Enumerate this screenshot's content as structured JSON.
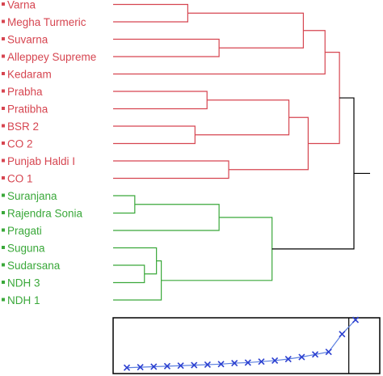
{
  "colors": {
    "cluster_a": "#d64550",
    "cluster_b": "#3aa83a",
    "root": "#000000",
    "plot_line": "#5b7fe0",
    "plot_marker": "#2b3fd0",
    "plot_frame": "#000000"
  },
  "dendrogram": {
    "leaves": [
      {
        "label": "Varna",
        "cluster": "a"
      },
      {
        "label": "Megha Turmeric",
        "cluster": "a"
      },
      {
        "label": "Suvarna",
        "cluster": "a"
      },
      {
        "label": "Alleppey Supreme",
        "cluster": "a"
      },
      {
        "label": "Kedaram",
        "cluster": "a"
      },
      {
        "label": "Prabha",
        "cluster": "a"
      },
      {
        "label": "Pratibha",
        "cluster": "a"
      },
      {
        "label": "BSR 2",
        "cluster": "a"
      },
      {
        "label": "CO 2",
        "cluster": "a"
      },
      {
        "label": "Punjab Haldi I",
        "cluster": "a"
      },
      {
        "label": "CO 1",
        "cluster": "a"
      },
      {
        "label": "Suranjana",
        "cluster": "b"
      },
      {
        "label": "Rajendra Sonia",
        "cluster": "b"
      },
      {
        "label": "Pragati",
        "cluster": "b"
      },
      {
        "label": "Suguna",
        "cluster": "b"
      },
      {
        "label": "Sudarsana",
        "cluster": "b"
      },
      {
        "label": "NDH 3",
        "cluster": "b"
      },
      {
        "label": "NDH 1",
        "cluster": "b"
      }
    ],
    "merges": [
      {
        "a": 0,
        "b": 1,
        "h": 0.31,
        "cluster": "a"
      },
      {
        "a": 2,
        "b": 3,
        "h": 0.44,
        "cluster": "a"
      },
      {
        "a": 18,
        "b": 19,
        "h": 0.79,
        "cluster": "a"
      },
      {
        "a": 20,
        "b": 4,
        "h": 0.88,
        "cluster": "a"
      },
      {
        "a": 5,
        "b": 6,
        "h": 0.39,
        "cluster": "a"
      },
      {
        "a": 7,
        "b": 8,
        "h": 0.34,
        "cluster": "a"
      },
      {
        "a": 22,
        "b": 23,
        "h": 0.73,
        "cluster": "a"
      },
      {
        "a": 9,
        "b": 10,
        "h": 0.48,
        "cluster": "a"
      },
      {
        "a": 24,
        "b": 25,
        "h": 0.81,
        "cluster": "a"
      },
      {
        "a": 21,
        "b": 26,
        "h": 0.94,
        "cluster": "a"
      },
      {
        "a": 11,
        "b": 12,
        "h": 0.09,
        "cluster": "b"
      },
      {
        "a": 28,
        "b": 13,
        "h": 0.44,
        "cluster": "b"
      },
      {
        "a": 15,
        "b": 16,
        "h": 0.13,
        "cluster": "b"
      },
      {
        "a": 14,
        "b": 30,
        "h": 0.18,
        "cluster": "b"
      },
      {
        "a": 31,
        "b": 17,
        "h": 0.2,
        "cluster": "b"
      },
      {
        "a": 29,
        "b": 32,
        "h": 0.66,
        "cluster": "b"
      },
      {
        "a": 27,
        "b": 33,
        "h": 1.0,
        "cluster": "root"
      }
    ]
  },
  "scree": {
    "values": [
      0.02,
      0.03,
      0.04,
      0.05,
      0.06,
      0.07,
      0.08,
      0.09,
      0.11,
      0.12,
      0.14,
      0.16,
      0.19,
      0.23,
      0.28,
      0.33,
      0.68,
      0.96
    ],
    "ylim": [
      0,
      1
    ],
    "cutoff_index": 16.5
  }
}
